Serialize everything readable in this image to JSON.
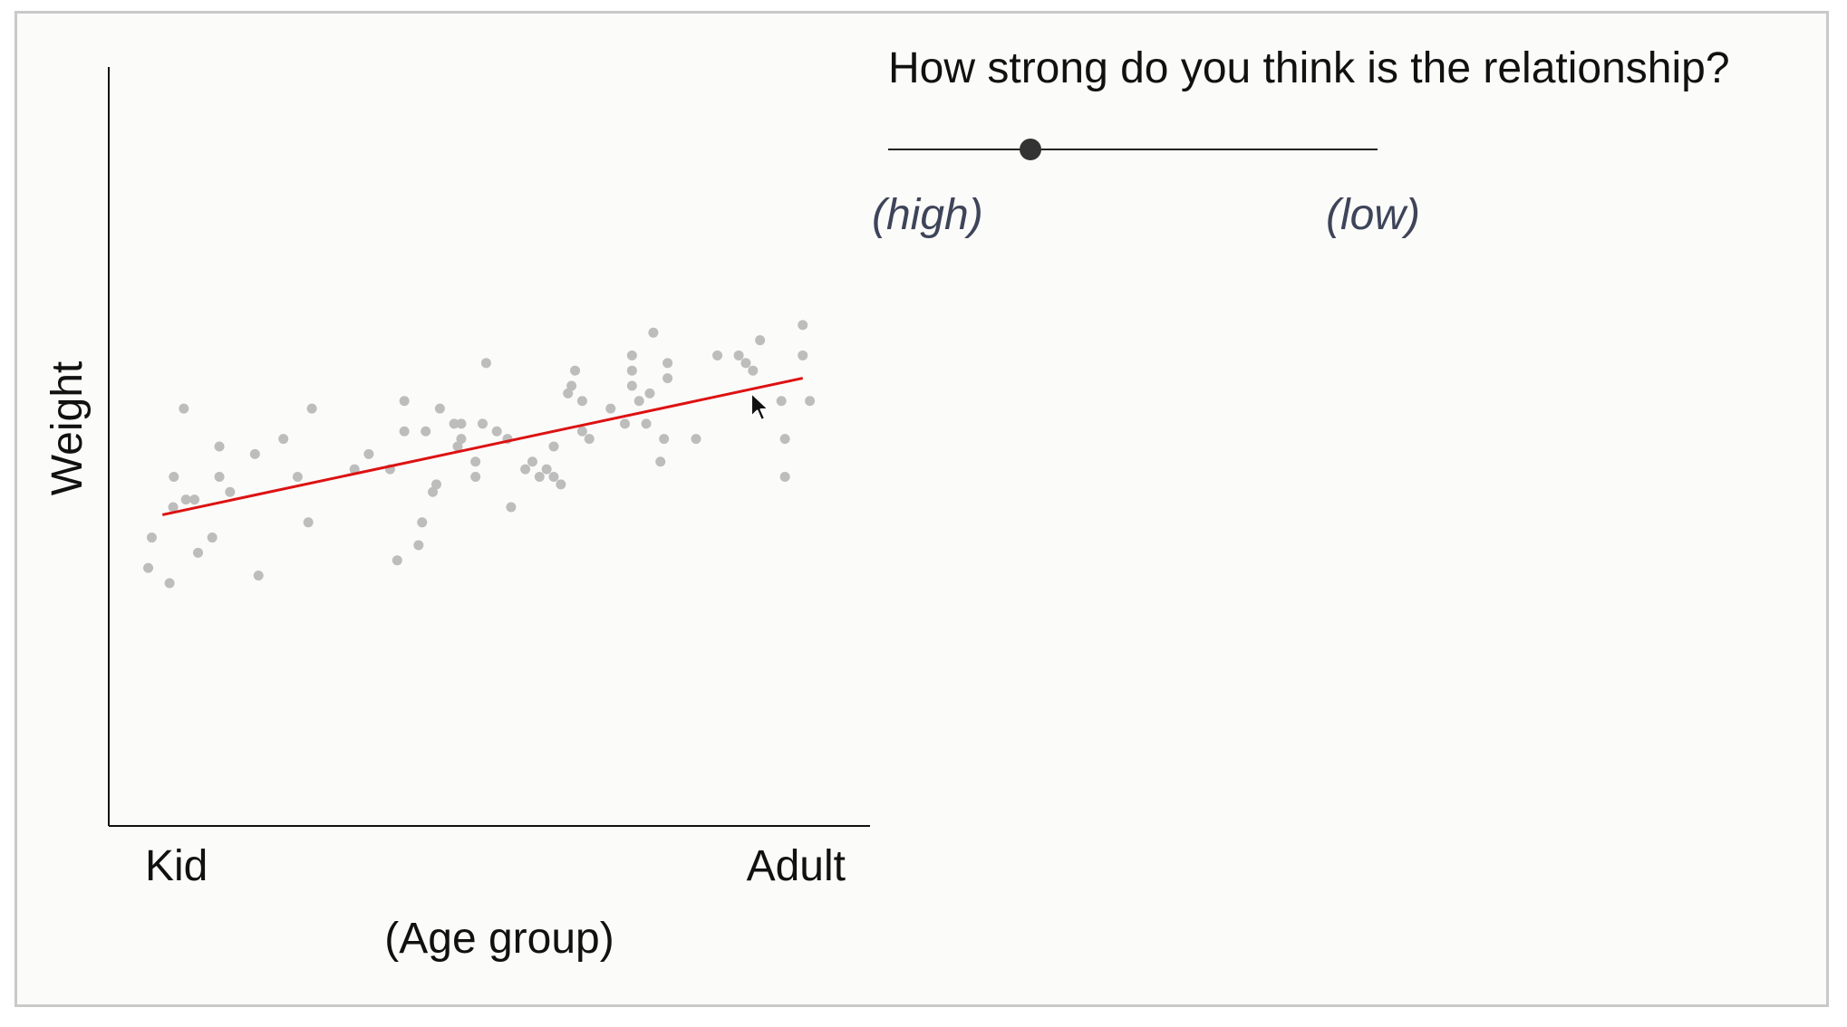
{
  "question": {
    "text": "How strong do you think is the relationship?"
  },
  "slider": {
    "label_high": "(high)",
    "label_low": "(low)",
    "value": 0.29,
    "thumb_color": "#333333"
  },
  "cursor_icon": "arrow-cursor-icon",
  "chart_data": {
    "type": "scatter",
    "title": "",
    "xlabel": "(Age group)",
    "ylabel": "Weight",
    "x_tick_labels": [
      "Kid",
      "Adult"
    ],
    "xlim": [
      0,
      1
    ],
    "ylim": [
      0,
      100
    ],
    "grid": false,
    "point_color": "#bdbdbd",
    "trend_color": "#dd1111",
    "points": [
      [
        0.03,
        34
      ],
      [
        0.035,
        38
      ],
      [
        0.06,
        32
      ],
      [
        0.065,
        42
      ],
      [
        0.066,
        46
      ],
      [
        0.08,
        55
      ],
      [
        0.083,
        43
      ],
      [
        0.095,
        43
      ],
      [
        0.1,
        36
      ],
      [
        0.12,
        38
      ],
      [
        0.13,
        50
      ],
      [
        0.13,
        46
      ],
      [
        0.145,
        44
      ],
      [
        0.18,
        49
      ],
      [
        0.185,
        33
      ],
      [
        0.22,
        51
      ],
      [
        0.24,
        46
      ],
      [
        0.255,
        40
      ],
      [
        0.26,
        55
      ],
      [
        0.32,
        47
      ],
      [
        0.34,
        49
      ],
      [
        0.37,
        47
      ],
      [
        0.38,
        35
      ],
      [
        0.39,
        52
      ],
      [
        0.39,
        56
      ],
      [
        0.42,
        52
      ],
      [
        0.415,
        40
      ],
      [
        0.41,
        37
      ],
      [
        0.43,
        44
      ],
      [
        0.435,
        45
      ],
      [
        0.44,
        55
      ],
      [
        0.46,
        53
      ],
      [
        0.465,
        50
      ],
      [
        0.47,
        53
      ],
      [
        0.47,
        51
      ],
      [
        0.49,
        48
      ],
      [
        0.49,
        46
      ],
      [
        0.5,
        53
      ],
      [
        0.505,
        61
      ],
      [
        0.52,
        52
      ],
      [
        0.535,
        51
      ],
      [
        0.54,
        42
      ],
      [
        0.56,
        47
      ],
      [
        0.57,
        48
      ],
      [
        0.58,
        46
      ],
      [
        0.59,
        47
      ],
      [
        0.6,
        50
      ],
      [
        0.6,
        46
      ],
      [
        0.62,
        57
      ],
      [
        0.625,
        58
      ],
      [
        0.63,
        60
      ],
      [
        0.61,
        45
      ],
      [
        0.64,
        52
      ],
      [
        0.64,
        56
      ],
      [
        0.65,
        51
      ],
      [
        0.68,
        55
      ],
      [
        0.7,
        53
      ],
      [
        0.71,
        62
      ],
      [
        0.71,
        60
      ],
      [
        0.71,
        58
      ],
      [
        0.72,
        56
      ],
      [
        0.73,
        53
      ],
      [
        0.735,
        57
      ],
      [
        0.74,
        65
      ],
      [
        0.75,
        48
      ],
      [
        0.755,
        51
      ],
      [
        0.76,
        61
      ],
      [
        0.76,
        59
      ],
      [
        0.8,
        51
      ],
      [
        0.83,
        62
      ],
      [
        0.86,
        62
      ],
      [
        0.87,
        61
      ],
      [
        0.88,
        60
      ],
      [
        0.885,
        55
      ],
      [
        0.89,
        64
      ],
      [
        0.92,
        56
      ],
      [
        0.925,
        51
      ],
      [
        0.925,
        46
      ],
      [
        0.95,
        66
      ],
      [
        0.95,
        62
      ],
      [
        0.96,
        56
      ]
    ],
    "trend_line": {
      "x": [
        0.05,
        0.95
      ],
      "y": [
        41,
        59
      ]
    }
  }
}
